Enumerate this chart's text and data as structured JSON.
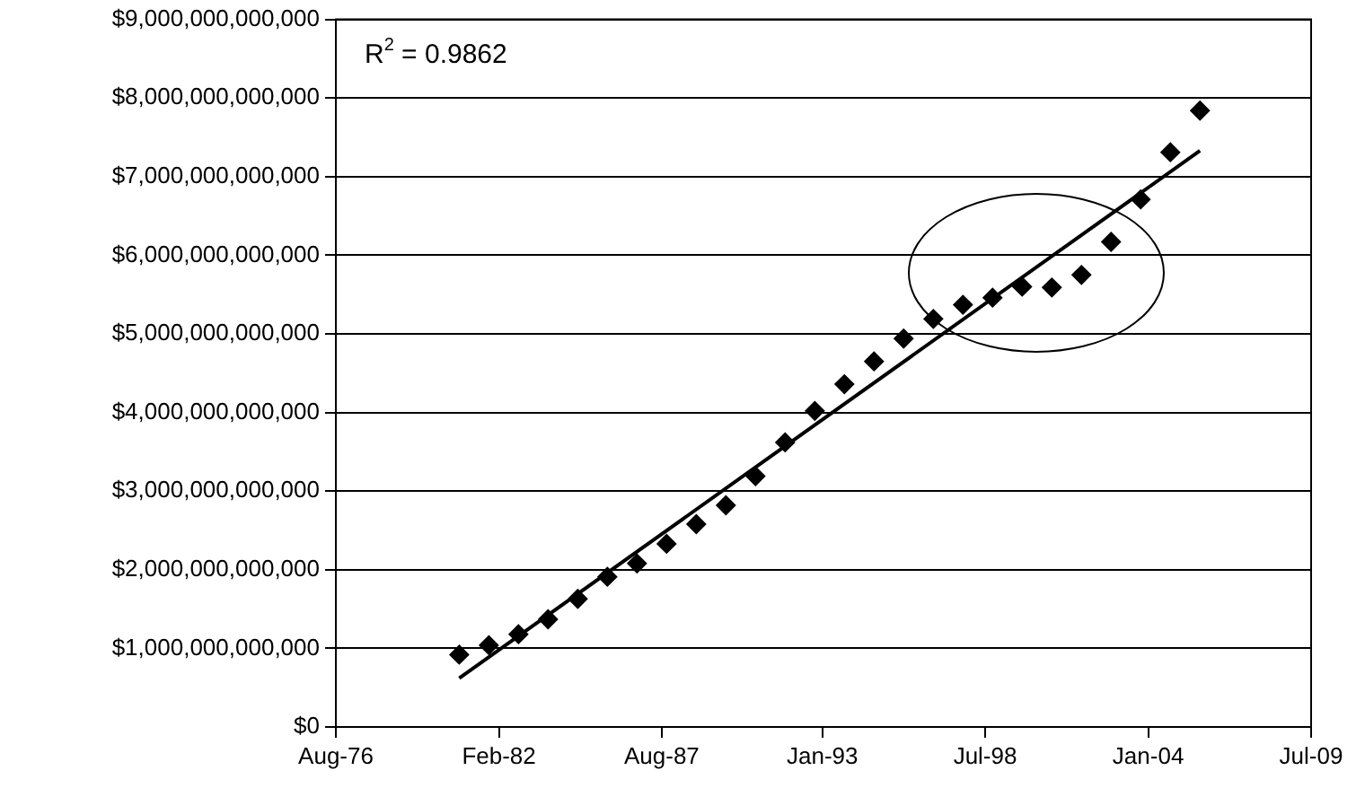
{
  "chart_data": {
    "type": "scatter",
    "xlim": [
      "1976-08-01",
      "2009-07-01"
    ],
    "xticks": [
      {
        "value": "1976-08-01",
        "label": "Aug-76"
      },
      {
        "value": "1982-02-01",
        "label": "Feb-82"
      },
      {
        "value": "1987-08-01",
        "label": "Aug-87"
      },
      {
        "value": "1993-01-01",
        "label": "Jan-93"
      },
      {
        "value": "1998-07-01",
        "label": "Jul-98"
      },
      {
        "value": "2004-01-01",
        "label": "Jan-04"
      },
      {
        "value": "2009-07-01",
        "label": "Jul-09"
      }
    ],
    "ylim": [
      0,
      9000000000000
    ],
    "yticks": [
      {
        "value": 0,
        "label": "$0"
      },
      {
        "value": 1000000000000,
        "label": "$1,000,000,000,000"
      },
      {
        "value": 2000000000000,
        "label": "$2,000,000,000,000"
      },
      {
        "value": 3000000000000,
        "label": "$3,000,000,000,000"
      },
      {
        "value": 4000000000000,
        "label": "$4,000,000,000,000"
      },
      {
        "value": 5000000000000,
        "label": "$5,000,000,000,000"
      },
      {
        "value": 6000000000000,
        "label": "$6,000,000,000,000"
      },
      {
        "value": 7000000000000,
        "label": "$7,000,000,000,000"
      },
      {
        "value": 8000000000000,
        "label": "$8,000,000,000,000"
      },
      {
        "value": 9000000000000,
        "label": "$9,000,000,000,000"
      }
    ],
    "grid": "y",
    "annotations": [
      "R$^{2}$ = 0.9862"
    ],
    "series": [
      {
        "type": "scatter",
        "color": "#000000",
        "marker": "diamond",
        "x": [
          "1980-09-30",
          "1981-09-30",
          "1982-09-30",
          "1983-09-30",
          "1984-09-30",
          "1985-09-30",
          "1986-09-30",
          "1987-09-30",
          "1988-09-30",
          "1989-09-30",
          "1990-09-30",
          "1991-09-30",
          "1992-09-30",
          "1993-09-30",
          "1994-09-30",
          "1995-09-30",
          "1996-09-30",
          "1997-09-30",
          "1998-09-30",
          "1999-09-30",
          "2000-09-30",
          "2001-09-30",
          "2002-09-30",
          "2003-09-30",
          "2004-09-30",
          "2005-09-30"
        ],
        "values": [
          920000000000,
          1040000000000,
          1180000000000,
          1370000000000,
          1630000000000,
          1910000000000,
          2080000000000,
          2330000000000,
          2580000000000,
          2820000000000,
          3190000000000,
          3620000000000,
          4020000000000,
          4360000000000,
          4650000000000,
          4940000000000,
          5190000000000,
          5370000000000,
          5460000000000,
          5600000000000,
          5590000000000,
          5750000000000,
          6170000000000,
          6710000000000,
          7310000000000,
          7840000000000
        ]
      },
      {
        "type": "line",
        "color": "#000000",
        "line_style": "solid",
        "x": [
          "1980-09-30",
          "2005-09-30"
        ],
        "values": [
          620000000000,
          7330000000000
        ]
      }
    ]
  }
}
